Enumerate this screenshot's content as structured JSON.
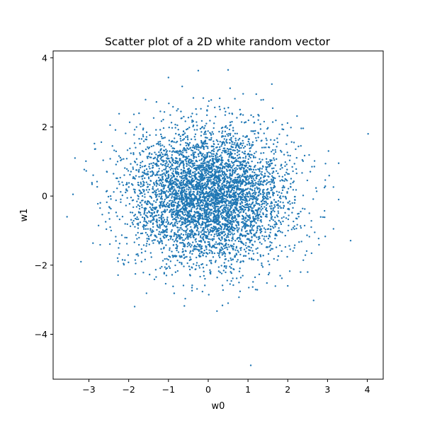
{
  "chart_data": {
    "type": "scatter",
    "title": "Scatter plot of a 2D white random vector",
    "xlabel": "w0",
    "ylabel": "w1",
    "xlim": [
      -3.9,
      4.4
    ],
    "ylim": [
      -5.3,
      4.2
    ],
    "xticks": [
      -3,
      -2,
      -1,
      0,
      1,
      2,
      3,
      4
    ],
    "yticks": [
      -4,
      -2,
      0,
      2,
      4
    ],
    "grid": false,
    "point_color": "#1f77b4",
    "series": [
      {
        "distribution": "standard normal, mean [0, 0], identity covariance",
        "n_points": 5000
      }
    ],
    "notable_points": [
      {
        "x": 4.02,
        "y": 1.8
      },
      {
        "x": 1.07,
        "y": -4.9
      },
      {
        "x": 0.5,
        "y": 3.65
      },
      {
        "x": -0.25,
        "y": 3.63
      },
      {
        "x": -1.0,
        "y": 3.43
      },
      {
        "x": 1.6,
        "y": 3.24
      },
      {
        "x": 0.55,
        "y": 3.12
      },
      {
        "x": -3.55,
        "y": -0.6
      },
      {
        "x": -3.4,
        "y": 0.05
      },
      {
        "x": -3.35,
        "y": 1.1
      },
      {
        "x": -3.2,
        "y": -1.9
      },
      {
        "x": 3.58,
        "y": -1.29
      },
      {
        "x": 3.28,
        "y": -0.1
      },
      {
        "x": 3.28,
        "y": 0.95
      },
      {
        "x": 3.15,
        "y": -0.95
      },
      {
        "x": -1.85,
        "y": -3.2
      },
      {
        "x": -0.6,
        "y": -3.18
      },
      {
        "x": 0.22,
        "y": -3.33
      },
      {
        "x": 0.5,
        "y": -3.1
      },
      {
        "x": 2.65,
        "y": -3.02
      },
      {
        "x": 2.0,
        "y": -2.6
      },
      {
        "x": 2.5,
        "y": -2.2
      }
    ]
  }
}
